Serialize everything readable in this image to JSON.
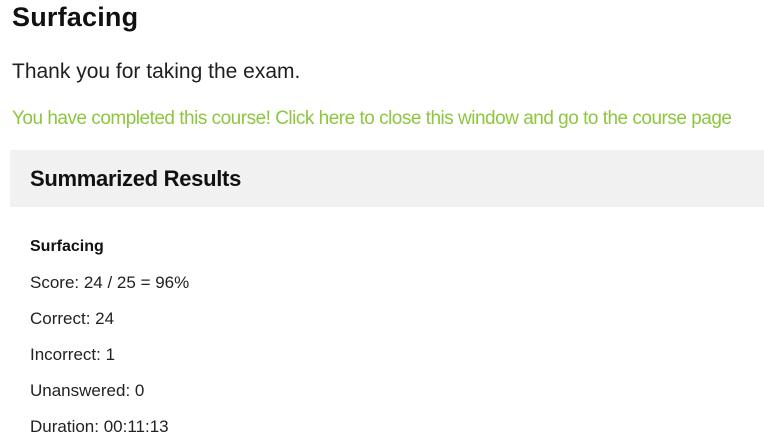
{
  "page": {
    "title": "Surfacing",
    "thank_you_message": "Thank you for taking the exam."
  },
  "completion_notice": {
    "link_text": "You have completed this course! Click here to close this window and go to the course page"
  },
  "summary": {
    "heading": "Summarized Results",
    "exam_title": "Surfacing",
    "stats": [
      {
        "label": "Score",
        "value": "24 / 25 = 96%",
        "text": "Score: 24 / 25 = 96%"
      },
      {
        "label": "Correct",
        "value": "24",
        "text": "Correct: 24"
      },
      {
        "label": "Incorrect",
        "value": "1",
        "text": "Incorrect: 1"
      },
      {
        "label": "Unanswered",
        "value": "0",
        "text": "Unanswered: 0"
      },
      {
        "label": "Duration",
        "value": "00:11:13",
        "text": "Duration: 00:11:13"
      }
    ]
  },
  "colors": {
    "accent_green": "#8dc63f",
    "section_header_bg": "#f1f1f1",
    "text_primary": "#111111"
  }
}
